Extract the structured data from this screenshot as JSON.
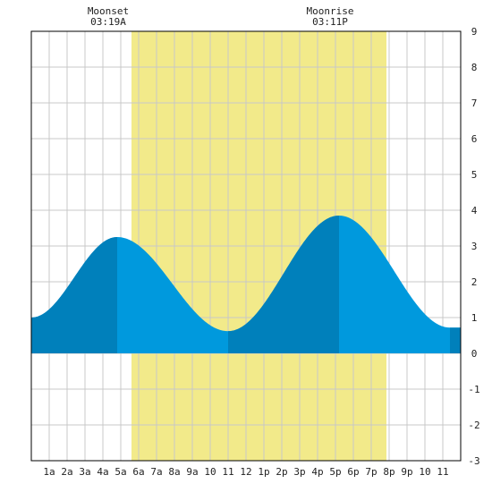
{
  "chart_data": {
    "type": "area",
    "title": "",
    "xlabel": "",
    "ylabel": "",
    "xlim": [
      0,
      24
    ],
    "ylim": [
      -3,
      9
    ],
    "grid": true,
    "x_tick_labels": [
      {
        "x": 1,
        "label": "1a"
      },
      {
        "x": 2,
        "label": "2a"
      },
      {
        "x": 3,
        "label": "3a"
      },
      {
        "x": 4,
        "label": "4a"
      },
      {
        "x": 5,
        "label": "5a"
      },
      {
        "x": 6,
        "label": "6a"
      },
      {
        "x": 7,
        "label": "7a"
      },
      {
        "x": 8,
        "label": "8a"
      },
      {
        "x": 9,
        "label": "9a"
      },
      {
        "x": 10,
        "label": "10"
      },
      {
        "x": 11,
        "label": "11"
      },
      {
        "x": 12,
        "label": "12"
      },
      {
        "x": 13,
        "label": "1p"
      },
      {
        "x": 14,
        "label": "2p"
      },
      {
        "x": 15,
        "label": "3p"
      },
      {
        "x": 16,
        "label": "4p"
      },
      {
        "x": 17,
        "label": "5p"
      },
      {
        "x": 18,
        "label": "6p"
      },
      {
        "x": 19,
        "label": "7p"
      },
      {
        "x": 20,
        "label": "8p"
      },
      {
        "x": 21,
        "label": "9p"
      },
      {
        "x": 22,
        "label": "10"
      },
      {
        "x": 23,
        "label": "11"
      }
    ],
    "y_ticks": [
      -3,
      -2,
      -1,
      0,
      1,
      2,
      3,
      4,
      5,
      6,
      7,
      8,
      9
    ],
    "daylight": {
      "start": 5.6,
      "end": 19.85
    },
    "tide_extrema": [
      {
        "x": 0.0,
        "y": 1.0
      },
      {
        "x": 4.8,
        "y": 3.25
      },
      {
        "x": 11.0,
        "y": 0.62
      },
      {
        "x": 17.2,
        "y": 3.85
      },
      {
        "x": 23.4,
        "y": 0.72
      }
    ],
    "dark_bands": [
      {
        "start": 0.0,
        "end": 4.8
      },
      {
        "start": 11.0,
        "end": 17.2
      },
      {
        "start": 23.4,
        "end": 24.0
      }
    ],
    "annotations": [
      {
        "x": 4.3,
        "line1": "Moonset",
        "line2": "03:19A"
      },
      {
        "x": 16.7,
        "line1": "Moonrise",
        "line2": "03:11P"
      }
    ],
    "colors": {
      "daylight": "#f2ea8a",
      "tide_light": "#0099dd",
      "tide_dark": "#0080bb",
      "grid": "#c8c8c8",
      "frame": "#000000"
    }
  }
}
